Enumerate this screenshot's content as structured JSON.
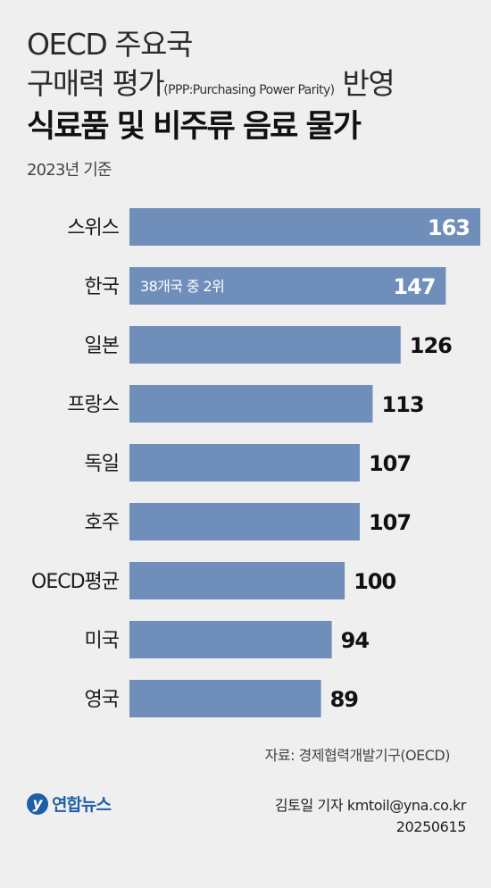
{
  "header": {
    "title_line1": "OECD 주요국",
    "title_line2_main": "구매력 평가",
    "title_line2_small": "(PPP:Purchasing Power Parity)",
    "title_line2_end": "반영",
    "title_line3": "식료품 및 비주류 음료 물가",
    "subtitle": "2023년 기준"
  },
  "chart_data": {
    "type": "bar",
    "orientation": "horizontal",
    "categories": [
      "스위스",
      "한국",
      "일본",
      "프랑스",
      "독일",
      "호주",
      "OECD평균",
      "미국",
      "영국"
    ],
    "values": [
      163,
      147,
      126,
      113,
      107,
      107,
      100,
      94,
      89
    ],
    "annotation": {
      "category": "한국",
      "text": "38개국 중 2위"
    },
    "bar_color": "#6f8fba",
    "title": "식료품 및 비주류 음료 물가",
    "xlabel": "",
    "ylabel": "",
    "xlim": [
      0,
      163
    ],
    "grid": false,
    "legend": "none"
  },
  "footer": {
    "source": "자료: 경제협력개발기구(OECD)",
    "logo_mark": "y",
    "logo_text": "연합뉴스",
    "author": "김토일 기자 kmtoil@yna.co.kr",
    "date": "20250615"
  }
}
